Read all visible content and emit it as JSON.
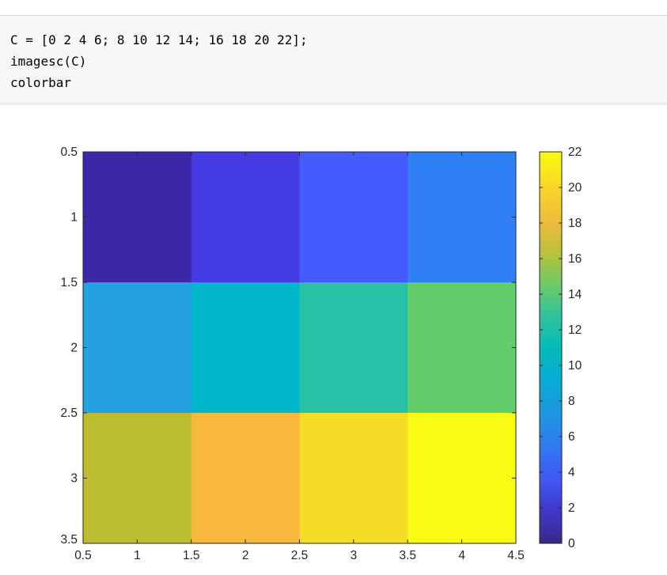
{
  "code": {
    "lines": [
      "C = [0 2 4 6; 8 10 12 14; 16 18 20 22];",
      "imagesc(C)",
      "colorbar"
    ]
  },
  "chart_data": {
    "type": "heatmap",
    "matrix": [
      [
        0,
        2,
        4,
        6
      ],
      [
        8,
        10,
        12,
        14
      ],
      [
        16,
        18,
        20,
        22
      ]
    ],
    "xlim": [
      0.5,
      4.5
    ],
    "ylim": [
      0.5,
      3.5
    ],
    "y_reversed": true,
    "xticks": [
      "0.5",
      "1",
      "1.5",
      "2",
      "2.5",
      "3",
      "3.5",
      "4",
      "4.5"
    ],
    "yticks": [
      "0.5",
      "1",
      "1.5",
      "2",
      "2.5",
      "3",
      "3.5"
    ],
    "colorbar": {
      "limits": [
        0,
        22
      ],
      "ticks": [
        "0",
        "2",
        "4",
        "6",
        "8",
        "10",
        "12",
        "14",
        "16",
        "18",
        "20",
        "22"
      ],
      "colormap": "parula"
    },
    "cell_colors": [
      [
        "#3e26a8",
        "#443ce2",
        "#465bfe",
        "#2f80f5"
      ],
      [
        "#23a1e0",
        "#01b6cb",
        "#27c2a6",
        "#63cd6c"
      ],
      [
        "#bbbc30",
        "#f7b83d",
        "#f5dd27",
        "#f9fb14"
      ]
    ],
    "title": "",
    "xlabel": "",
    "ylabel": ""
  }
}
